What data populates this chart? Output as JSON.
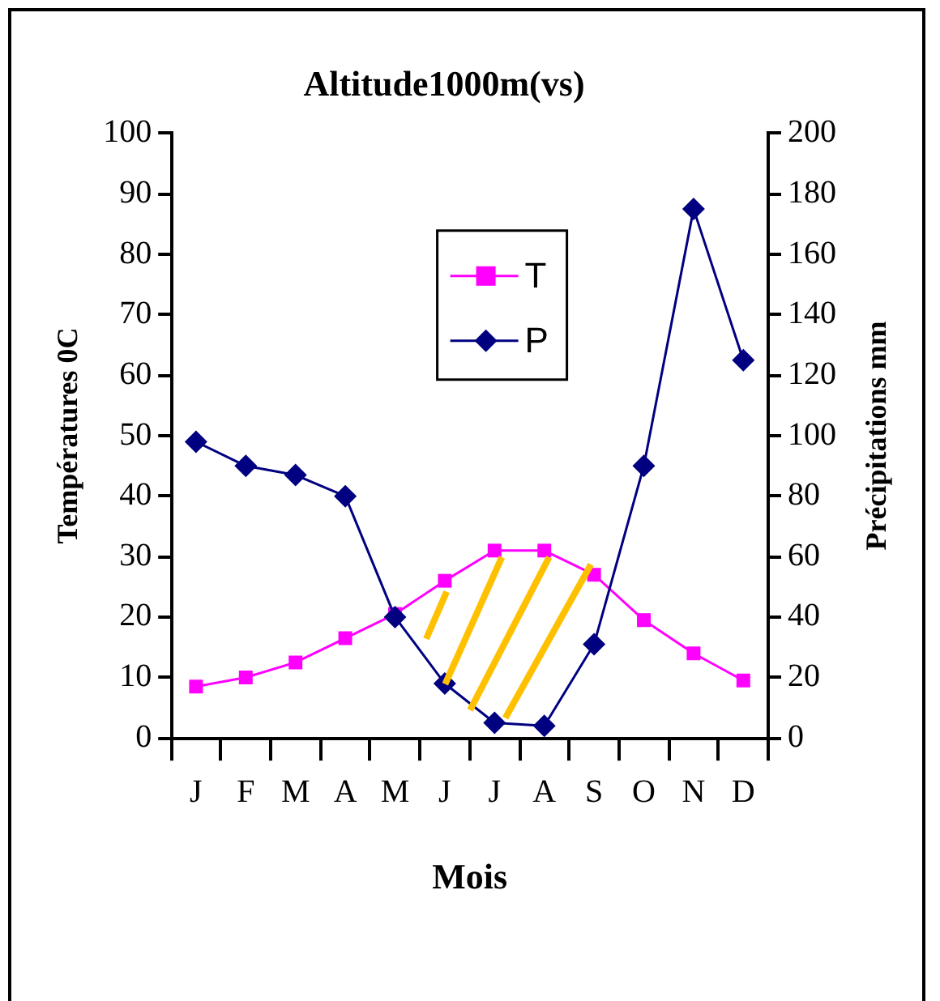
{
  "chart_data": {
    "type": "line",
    "title": "Altitude1000m(vs)",
    "xlabel": "Mois",
    "ylabel": "Températures 0C",
    "y2label": "Précipitations mm",
    "categories": [
      "J",
      "F",
      "M",
      "A",
      "M",
      "J",
      "J",
      "A",
      "S",
      "O",
      "N",
      "D"
    ],
    "series": [
      {
        "name": "T",
        "color": "#ff00ff",
        "marker": "square",
        "values": [
          8.5,
          10,
          12.5,
          16.5,
          20.5,
          26,
          31,
          31,
          27,
          19.5,
          14,
          9.5
        ]
      },
      {
        "name": "P",
        "color": "#000080",
        "marker": "diamond",
        "axis": "y2",
        "values": [
          98,
          90,
          87,
          80,
          40,
          18,
          5,
          4,
          31,
          90,
          175,
          125
        ]
      }
    ],
    "ylim": [
      0,
      100
    ],
    "yticks": [
      0,
      10,
      20,
      30,
      40,
      50,
      60,
      70,
      80,
      90,
      100
    ],
    "y2lim": [
      0,
      200
    ],
    "y2ticks": [
      0,
      20,
      40,
      60,
      80,
      100,
      120,
      140,
      160,
      180,
      200
    ],
    "grid": false,
    "legend": "top"
  }
}
